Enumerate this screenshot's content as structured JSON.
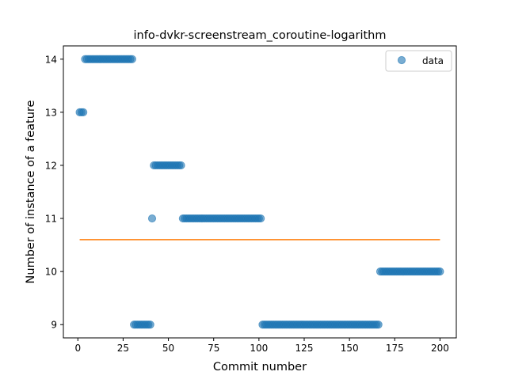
{
  "chart_data": {
    "type": "scatter",
    "title": "info-dvkr-screenstream_coroutine-logarithm",
    "xlabel": "Commit number",
    "ylabel": "Number of instance of a feature",
    "xlim": [
      -8,
      209
    ],
    "ylim": [
      8.75,
      14.25
    ],
    "xticks": [
      0,
      25,
      50,
      75,
      100,
      125,
      150,
      175,
      200
    ],
    "yticks": [
      9,
      10,
      11,
      12,
      13,
      14
    ],
    "grid": false,
    "legend_position": "top-right",
    "series": [
      {
        "name": "data",
        "kind": "points",
        "color": "#1f77b4",
        "segments": [
          {
            "x_start": 1,
            "x_end": 3,
            "y": 13
          },
          {
            "x_start": 4,
            "x_end": 30,
            "y": 14
          },
          {
            "x_start": 31,
            "x_end": 40,
            "y": 9
          },
          {
            "x_start": 41,
            "x_end": 41,
            "y": 11
          },
          {
            "x_start": 42,
            "x_end": 57,
            "y": 12
          },
          {
            "x_start": 58,
            "x_end": 101,
            "y": 11
          },
          {
            "x_start": 102,
            "x_end": 166,
            "y": 9
          },
          {
            "x_start": 167,
            "x_end": 200,
            "y": 10
          }
        ]
      },
      {
        "kind": "line",
        "color": "#ff7f0e",
        "x": [
          1,
          200
        ],
        "y": [
          10.6,
          10.6
        ]
      }
    ]
  }
}
